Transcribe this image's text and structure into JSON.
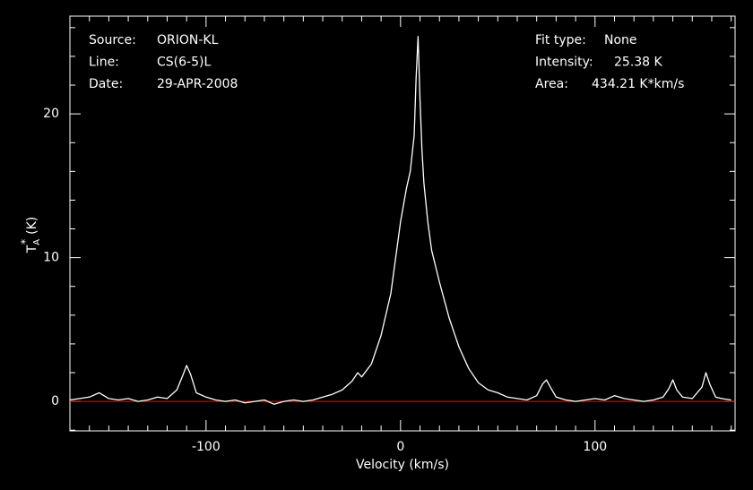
{
  "chart_data": {
    "type": "line",
    "xlabel": "Velocity (km/s)",
    "ylabel": {
      "symbol": "T",
      "subscript": "A",
      "superscript": "*",
      "unit": "(K)"
    },
    "annotations_left": [
      {
        "key": "Source:",
        "value": "ORION-KL"
      },
      {
        "key": "Line:",
        "value": "CS(6-5)L"
      },
      {
        "key": "Date:",
        "value": "29-APR-2008"
      }
    ],
    "annotations_right": [
      {
        "key": "Fit type:",
        "value": "None"
      },
      {
        "key": "Intensity:",
        "value": "25.38 K"
      },
      {
        "key": "Area:",
        "value": "434.21 K*km/s"
      }
    ],
    "x": [
      -170,
      -165,
      -160,
      -155,
      -150,
      -145,
      -140,
      -135,
      -130,
      -125,
      -120,
      -115,
      -112,
      -110,
      -108,
      -105,
      -100,
      -95,
      -90,
      -85,
      -80,
      -75,
      -70,
      -65,
      -60,
      -55,
      -50,
      -45,
      -40,
      -35,
      -30,
      -25,
      -22,
      -20,
      -15,
      -10,
      -5,
      0,
      3,
      5,
      7,
      8,
      9,
      10,
      11,
      12,
      14,
      16,
      20,
      25,
      30,
      35,
      40,
      45,
      50,
      55,
      60,
      65,
      70,
      73,
      75,
      77,
      80,
      85,
      90,
      95,
      100,
      105,
      110,
      115,
      120,
      125,
      130,
      135,
      138,
      140,
      142,
      145,
      150,
      155,
      157,
      159,
      162,
      165,
      170
    ],
    "series": [
      {
        "name": "spectrum",
        "color": "#ffffff",
        "values": [
          0.1,
          0.2,
          0.3,
          0.6,
          0.2,
          0.1,
          0.2,
          0.0,
          0.1,
          0.3,
          0.2,
          0.8,
          1.8,
          2.5,
          1.9,
          0.6,
          0.3,
          0.1,
          0.0,
          0.1,
          -0.1,
          0.0,
          0.1,
          -0.2,
          0.0,
          0.1,
          0.0,
          0.1,
          0.3,
          0.5,
          0.8,
          1.4,
          2.0,
          1.7,
          2.6,
          4.6,
          7.5,
          12.5,
          14.8,
          16.0,
          18.5,
          22.5,
          25.38,
          21,
          17.5,
          15.2,
          12.5,
          10.5,
          8.3,
          5.8,
          3.8,
          2.3,
          1.3,
          0.8,
          0.6,
          0.3,
          0.2,
          0.1,
          0.4,
          1.2,
          1.5,
          1.0,
          0.3,
          0.1,
          0.0,
          0.1,
          0.2,
          0.1,
          0.4,
          0.2,
          0.1,
          0.0,
          0.1,
          0.3,
          0.9,
          1.5,
          0.8,
          0.3,
          0.2,
          1.0,
          2.0,
          1.2,
          0.3,
          0.2,
          0.1
        ]
      }
    ],
    "baseline": {
      "value": 0,
      "color": "#ff0000"
    },
    "xlim": [
      -170,
      172
    ],
    "ylim": [
      -2.05,
      26.8
    ],
    "xticks": [
      -100,
      0,
      100
    ],
    "yticks": [
      0,
      10,
      20
    ],
    "xminorticks": [
      -160,
      -150,
      -140,
      -130,
      -120,
      -110,
      -90,
      -80,
      -70,
      -60,
      -50,
      -40,
      -30,
      -20,
      -10,
      10,
      20,
      30,
      40,
      50,
      60,
      70,
      80,
      90,
      110,
      120,
      130,
      140,
      150,
      160,
      170
    ],
    "yminorticks": [
      -2,
      2,
      4,
      6,
      8,
      12,
      14,
      16,
      18,
      22,
      24,
      26
    ],
    "background": "#000000",
    "foreground": "#ffffff"
  }
}
